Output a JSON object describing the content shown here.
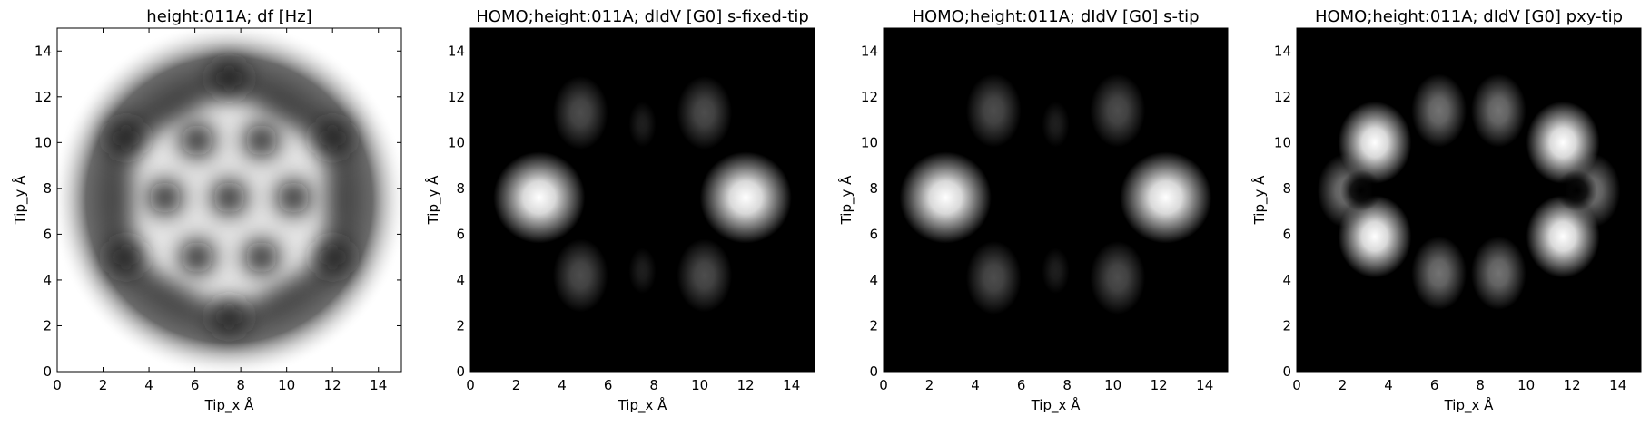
{
  "chart_data": [
    {
      "type": "heatmap",
      "title": "height:011A; df [Hz]",
      "xlabel": "Tip_x Å",
      "ylabel": "Tip_y Å",
      "xlim": [
        0,
        15
      ],
      "ylim": [
        0,
        15
      ],
      "xticks": [
        0,
        2,
        4,
        6,
        8,
        10,
        12,
        14
      ],
      "yticks": [
        0,
        2,
        4,
        6,
        8,
        10,
        12,
        14
      ],
      "colormap": "gray",
      "grid": false,
      "features": {
        "description_kind": "ring-background",
        "disk_center": [
          7.5,
          7.5
        ],
        "bright_background_outside": true,
        "dark_spots": [
          [
            7.5,
            7.6
          ],
          [
            6.1,
            10.1
          ],
          [
            8.9,
            10.1
          ],
          [
            6.1,
            5.0
          ],
          [
            8.9,
            5.0
          ],
          [
            4.7,
            7.6
          ],
          [
            10.3,
            7.6
          ],
          [
            7.5,
            12.8
          ],
          [
            7.5,
            2.4
          ],
          [
            3.0,
            10.2
          ],
          [
            12.0,
            10.2
          ],
          [
            3.0,
            5.0
          ],
          [
            12.0,
            5.0
          ]
        ]
      }
    },
    {
      "type": "heatmap",
      "title": "HOMO;height:011A; dIdV [G0] s-fixed-tip",
      "xlabel": "Tip_x Å",
      "ylabel": "Tip_y Å",
      "xlim": [
        0,
        15
      ],
      "ylim": [
        0,
        15
      ],
      "xticks": [
        0,
        2,
        4,
        6,
        8,
        10,
        12,
        14
      ],
      "yticks": [
        0,
        2,
        4,
        6,
        8,
        10,
        12,
        14
      ],
      "colormap": "gray",
      "grid": false,
      "features": {
        "bright_spots": [
          {
            "x": 3.0,
            "y": 7.6,
            "intensity": 1.0
          },
          {
            "x": 12.0,
            "y": 7.6,
            "intensity": 1.0
          },
          {
            "x": 4.8,
            "y": 11.3,
            "intensity": 0.3
          },
          {
            "x": 10.2,
            "y": 11.3,
            "intensity": 0.3
          },
          {
            "x": 4.8,
            "y": 4.2,
            "intensity": 0.3
          },
          {
            "x": 10.2,
            "y": 4.2,
            "intensity": 0.3
          },
          {
            "x": 7.5,
            "y": 10.8,
            "intensity": 0.12
          },
          {
            "x": 7.5,
            "y": 4.4,
            "intensity": 0.12
          }
        ]
      }
    },
    {
      "type": "heatmap",
      "title": "HOMO;height:011A; dIdV [G0] s-tip",
      "xlabel": "Tip_x Å",
      "ylabel": "Tip_y Å",
      "xlim": [
        0,
        15
      ],
      "ylim": [
        0,
        15
      ],
      "xticks": [
        0,
        2,
        4,
        6,
        8,
        10,
        12,
        14
      ],
      "yticks": [
        0,
        2,
        4,
        6,
        8,
        10,
        12,
        14
      ],
      "colormap": "gray",
      "grid": false,
      "features": {
        "bright_spots": [
          {
            "x": 2.7,
            "y": 7.6,
            "intensity": 1.0
          },
          {
            "x": 12.3,
            "y": 7.6,
            "intensity": 1.0
          },
          {
            "x": 4.8,
            "y": 11.4,
            "intensity": 0.3
          },
          {
            "x": 10.2,
            "y": 11.4,
            "intensity": 0.3
          },
          {
            "x": 4.8,
            "y": 4.1,
            "intensity": 0.3
          },
          {
            "x": 10.2,
            "y": 4.1,
            "intensity": 0.3
          },
          {
            "x": 7.5,
            "y": 10.8,
            "intensity": 0.12
          },
          {
            "x": 7.5,
            "y": 4.4,
            "intensity": 0.12
          }
        ]
      }
    },
    {
      "type": "heatmap",
      "title": "HOMO;height:011A; dIdV [G0] pxy-tip",
      "xlabel": "Tip_x Å",
      "ylabel": "Tip_y Å",
      "xlim": [
        0,
        15
      ],
      "ylim": [
        0,
        15
      ],
      "xticks": [
        0,
        2,
        4,
        6,
        8,
        10,
        12,
        14
      ],
      "yticks": [
        0,
        2,
        4,
        6,
        8,
        10,
        12,
        14
      ],
      "colormap": "gray",
      "grid": false,
      "features": {
        "bright_spots": [
          {
            "x": 3.4,
            "y": 10.0,
            "intensity": 1.0
          },
          {
            "x": 3.4,
            "y": 5.9,
            "intensity": 1.0
          },
          {
            "x": 11.6,
            "y": 10.0,
            "intensity": 1.0
          },
          {
            "x": 11.6,
            "y": 5.9,
            "intensity": 1.0
          },
          {
            "x": 2.1,
            "y": 7.9,
            "intensity": 0.45
          },
          {
            "x": 12.9,
            "y": 7.9,
            "intensity": 0.45
          },
          {
            "x": 6.2,
            "y": 11.4,
            "intensity": 0.45
          },
          {
            "x": 8.8,
            "y": 11.4,
            "intensity": 0.45
          },
          {
            "x": 6.2,
            "y": 4.3,
            "intensity": 0.45
          },
          {
            "x": 8.8,
            "y": 4.3,
            "intensity": 0.45
          }
        ],
        "dark_spots": [
          [
            2.8,
            7.9
          ],
          [
            12.2,
            7.9
          ]
        ]
      }
    }
  ]
}
